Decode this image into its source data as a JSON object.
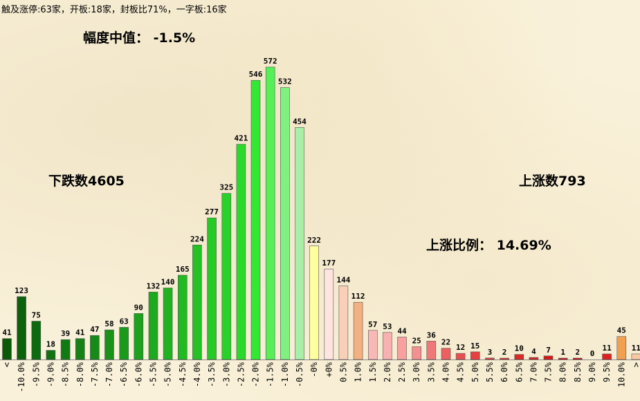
{
  "header": {
    "summary": "触及涨停:63家，开板:18家，封板比71%，一字板:16家"
  },
  "annotations": {
    "median": "幅度中值： -1.5%",
    "down_count": "下跌数4605",
    "up_count": "上涨数793",
    "up_ratio": "上涨比例： 14.69%"
  },
  "chart_data": {
    "type": "bar",
    "categories": [
      "<",
      "-10.0%",
      "-9.5%",
      "-9.0%",
      "-8.5%",
      "-8.0%",
      "-7.5%",
      "-7.0%",
      "-6.5%",
      "-6.0%",
      "-5.5%",
      "-5.0%",
      "-4.5%",
      "-4.0%",
      "-3.5%",
      "-3.0%",
      "-2.5%",
      "-2.0%",
      "-1.5%",
      "-1.0%",
      "-0.5%",
      "-0%",
      "+0%",
      "0.5%",
      "1.0%",
      "1.5%",
      "2.0%",
      "2.5%",
      "3.0%",
      "3.5%",
      "4.0%",
      "4.5%",
      "5.0%",
      "5.5%",
      "6.0%",
      "6.5%",
      "7.0%",
      "7.5%",
      "8.0%",
      "8.5%",
      "9.0%",
      "9.5%",
      "10.0%",
      ">"
    ],
    "values": [
      41,
      123,
      75,
      18,
      39,
      41,
      47,
      58,
      63,
      90,
      132,
      140,
      165,
      224,
      277,
      325,
      421,
      546,
      572,
      532,
      454,
      222,
      177,
      144,
      112,
      57,
      53,
      44,
      25,
      36,
      22,
      12,
      15,
      3,
      2,
      10,
      4,
      7,
      1,
      2,
      0,
      11,
      45,
      11
    ],
    "colors": [
      "#0a5a0a",
      "#0c620c",
      "#0e6a0e",
      "#107210",
      "#127a12",
      "#148214",
      "#168a16",
      "#189218",
      "#1a9a1a",
      "#1ca21c",
      "#1eaa1e",
      "#20b220",
      "#22ba22",
      "#24c224",
      "#26ca26",
      "#28d228",
      "#2ada2a",
      "#33e833",
      "#55f055",
      "#80f080",
      "#a8f0a8",
      "#ffffa0",
      "#ffe4e0",
      "#f8d0b8",
      "#f4b080",
      "#f8b8b8",
      "#f8b0b0",
      "#f8a0a0",
      "#f49090",
      "#f07878",
      "#ec6060",
      "#e85050",
      "#e84040",
      "#e03838",
      "#e03030",
      "#dc2828",
      "#d82020",
      "#d41818",
      "#d01010",
      "#cc0808",
      "#c80000",
      "#e02020",
      "#f0a050",
      "#f8c8a0"
    ],
    "ylim": [
      0,
      572
    ]
  }
}
